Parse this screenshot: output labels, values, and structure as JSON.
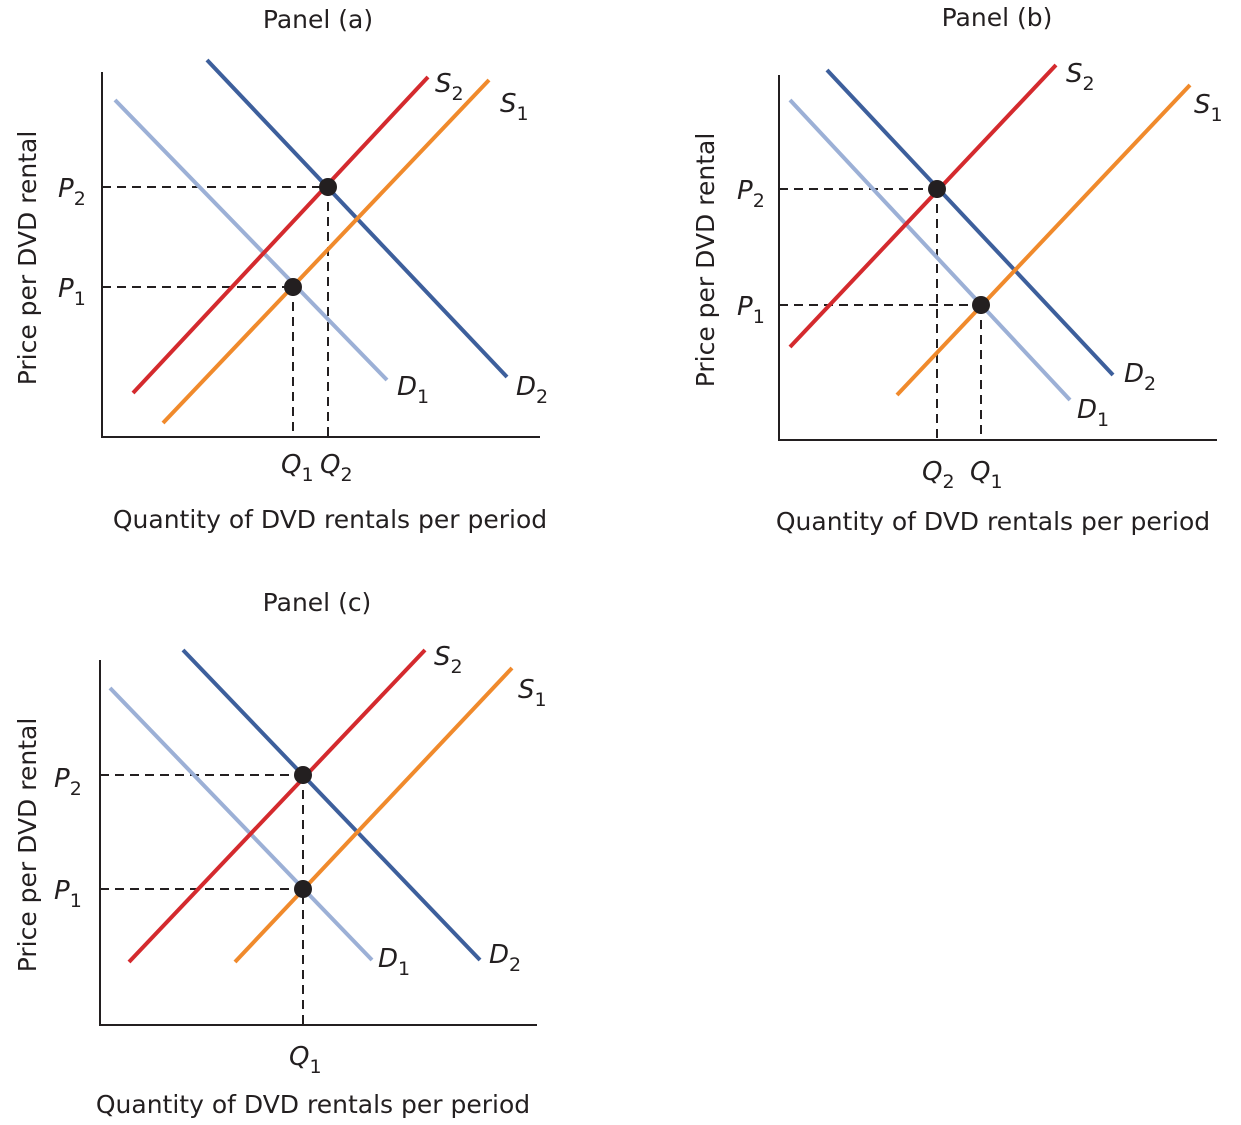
{
  "colors": {
    "D1": "#9cb0d6",
    "D2": "#3d5f9c",
    "S1": "#f08a2c",
    "S2": "#d42a2e",
    "axis": "#231f20"
  },
  "panels": [
    {
      "title": "Panel (a)",
      "ylabel": "Price per DVD rental",
      "xlabel": "Quantity of DVD rentals per period",
      "curves": [
        {
          "letter": "S",
          "sub": "2"
        },
        {
          "letter": "S",
          "sub": "1"
        },
        {
          "letter": "D",
          "sub": "1"
        },
        {
          "letter": "D",
          "sub": "2"
        }
      ],
      "price_labels": [
        {
          "letter": "P",
          "sub": "2"
        },
        {
          "letter": "P",
          "sub": "1"
        }
      ],
      "quantity_labels": [
        {
          "letter": "Q",
          "sub": "1"
        },
        {
          "letter": "Q",
          "sub": "2"
        }
      ]
    },
    {
      "title": "Panel (b)",
      "ylabel": "Price per DVD rental",
      "xlabel": "Quantity of DVD rentals per period",
      "curves": [
        {
          "letter": "S",
          "sub": "2"
        },
        {
          "letter": "S",
          "sub": "1"
        },
        {
          "letter": "D",
          "sub": "2"
        },
        {
          "letter": "D",
          "sub": "1"
        }
      ],
      "price_labels": [
        {
          "letter": "P",
          "sub": "2"
        },
        {
          "letter": "P",
          "sub": "1"
        }
      ],
      "quantity_labels": [
        {
          "letter": "Q",
          "sub": "2"
        },
        {
          "letter": "Q",
          "sub": "1"
        }
      ]
    },
    {
      "title": "Panel (c)",
      "ylabel": "Price per DVD rental",
      "xlabel": "Quantity of DVD rentals per period",
      "curves": [
        {
          "letter": "S",
          "sub": "2"
        },
        {
          "letter": "S",
          "sub": "1"
        },
        {
          "letter": "D",
          "sub": "1"
        },
        {
          "letter": "D",
          "sub": "2"
        }
      ],
      "price_labels": [
        {
          "letter": "P",
          "sub": "2"
        },
        {
          "letter": "P",
          "sub": "1"
        }
      ],
      "quantity_labels": [
        {
          "letter": "Q",
          "sub": "1"
        }
      ]
    }
  ]
}
